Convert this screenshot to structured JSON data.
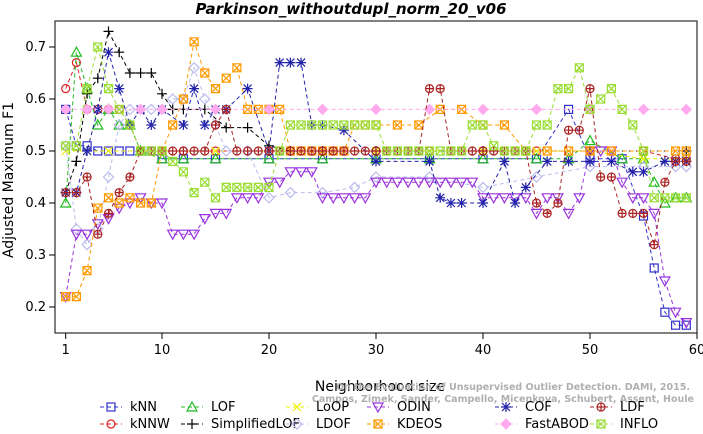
{
  "chart_data": {
    "type": "line",
    "title": "Parkinson_withoutdupl_norm_20_v06",
    "xlabel": "Neighborhood size",
    "ylabel": "Adjusted Maximum F1",
    "xlim": [
      0,
      60
    ],
    "ylim": [
      0.15,
      0.75
    ],
    "x_ticks": [
      1,
      10,
      20,
      30,
      40,
      50,
      60
    ],
    "y_ticks": [
      0.2,
      0.3,
      0.4,
      0.5,
      0.6,
      0.7
    ],
    "grid": false,
    "legend_position": "bottom",
    "watermark": [
      "Campos, Zimek, Sander, Campello, Micenkova, Schubert, Assent, Houle",
      "On the Evaluation of Unsupervised Outlier Detection. DAMI, 2015."
    ],
    "series": [
      {
        "name": "kNN",
        "color": "#3030cc",
        "marker": "square",
        "x": [
          1,
          2,
          3,
          4,
          5,
          6,
          7,
          8,
          9,
          10,
          12,
          15,
          20,
          25,
          30,
          35,
          40,
          45,
          48,
          50,
          53,
          55,
          56,
          57,
          58,
          59
        ],
        "y": [
          0.58,
          0.51,
          0.51,
          0.5,
          0.5,
          0.5,
          0.5,
          0.5,
          0.5,
          0.485,
          0.485,
          0.485,
          0.485,
          0.485,
          0.485,
          0.485,
          0.485,
          0.485,
          0.58,
          0.485,
          0.485,
          0.375,
          0.275,
          0.19,
          0.165,
          0.165
        ]
      },
      {
        "name": "kNNW",
        "color": "#dd2222",
        "marker": "circle",
        "x": [
          1,
          2,
          3,
          4,
          5,
          6,
          7,
          8,
          9,
          10,
          12,
          15,
          20,
          25,
          30,
          35,
          40,
          45,
          50,
          55,
          58,
          59
        ],
        "y": [
          0.62,
          0.67,
          0.58,
          0.58,
          0.58,
          0.58,
          0.55,
          0.5,
          0.5,
          0.5,
          0.5,
          0.5,
          0.5,
          0.5,
          0.5,
          0.5,
          0.5,
          0.5,
          0.5,
          0.5,
          0.485,
          0.485
        ]
      },
      {
        "name": "LOF",
        "color": "#22bb22",
        "marker": "triangle-up",
        "x": [
          1,
          2,
          3,
          4,
          5,
          6,
          7,
          8,
          10,
          12,
          15,
          20,
          25,
          30,
          35,
          40,
          45,
          48,
          50,
          53,
          55,
          56,
          57,
          58,
          59
        ],
        "y": [
          0.4,
          0.69,
          0.62,
          0.55,
          0.58,
          0.55,
          0.55,
          0.5,
          0.485,
          0.485,
          0.485,
          0.485,
          0.485,
          0.485,
          0.485,
          0.485,
          0.485,
          0.485,
          0.52,
          0.485,
          0.485,
          0.44,
          0.4,
          0.41,
          0.41
        ]
      },
      {
        "name": "SimplifiedLOF",
        "color": "#000000",
        "marker": "plus",
        "x": [
          1,
          2,
          3,
          4,
          5,
          6,
          7,
          8,
          9,
          10,
          11,
          12,
          14,
          16,
          18,
          20,
          22,
          25,
          30,
          40,
          50,
          59
        ],
        "y": [
          0.42,
          0.48,
          0.61,
          0.64,
          0.73,
          0.69,
          0.65,
          0.65,
          0.65,
          0.61,
          0.58,
          0.58,
          0.58,
          0.545,
          0.545,
          0.51,
          0.5,
          0.5,
          0.5,
          0.5,
          0.5,
          0.5
        ]
      },
      {
        "name": "LoOP",
        "color": "#eeee00",
        "marker": "x",
        "x": [
          1,
          3,
          5,
          8,
          10,
          15,
          20,
          25,
          30,
          35,
          40,
          45,
          50,
          55,
          59
        ],
        "y": [
          0.5,
          0.5,
          0.5,
          0.5,
          0.5,
          0.5,
          0.5,
          0.5,
          0.5,
          0.5,
          0.5,
          0.5,
          0.5,
          0.485,
          0.485
        ]
      },
      {
        "name": "LDOF",
        "color": "#bbbbee",
        "marker": "diamond",
        "x": [
          1,
          2,
          3,
          4,
          5,
          6,
          7,
          8,
          9,
          10,
          11,
          12,
          13,
          14,
          15,
          16,
          18,
          20,
          22,
          25,
          28,
          30,
          35,
          40,
          45,
          50,
          55,
          58,
          59
        ],
        "y": [
          0.51,
          0.35,
          0.32,
          0.35,
          0.45,
          0.55,
          0.58,
          0.58,
          0.58,
          0.58,
          0.6,
          0.6,
          0.66,
          0.6,
          0.55,
          0.5,
          0.5,
          0.41,
          0.42,
          0.42,
          0.43,
          0.45,
          0.45,
          0.43,
          0.45,
          0.47,
          0.47,
          0.47,
          0.47
        ]
      },
      {
        "name": "ODIN",
        "color": "#9933dd",
        "marker": "triangle-down",
        "x": [
          1,
          2,
          3,
          4,
          5,
          6,
          7,
          8,
          9,
          10,
          11,
          12,
          13,
          14,
          15,
          16,
          17,
          18,
          19,
          20,
          21,
          22,
          23,
          24,
          25,
          26,
          27,
          28,
          29,
          30,
          31,
          32,
          33,
          34,
          35,
          36,
          37,
          38,
          39,
          40,
          41,
          42,
          43,
          44,
          45,
          46,
          47,
          48,
          49,
          50,
          51,
          52,
          53,
          54,
          55,
          56,
          57,
          58,
          59
        ],
        "y": [
          0.22,
          0.34,
          0.34,
          0.36,
          0.37,
          0.39,
          0.4,
          0.41,
          0.4,
          0.4,
          0.34,
          0.34,
          0.34,
          0.37,
          0.38,
          0.38,
          0.41,
          0.41,
          0.41,
          0.44,
          0.44,
          0.46,
          0.46,
          0.46,
          0.41,
          0.41,
          0.41,
          0.41,
          0.41,
          0.44,
          0.44,
          0.44,
          0.44,
          0.44,
          0.44,
          0.44,
          0.44,
          0.44,
          0.44,
          0.41,
          0.41,
          0.41,
          0.41,
          0.41,
          0.38,
          0.41,
          0.41,
          0.38,
          0.41,
          0.5,
          0.5,
          0.5,
          0.44,
          0.41,
          0.41,
          0.38,
          0.25,
          0.19,
          0.17
        ]
      },
      {
        "name": "KDEOS",
        "color": "#ff9900",
        "marker": "square-x",
        "x": [
          1,
          2,
          3,
          4,
          5,
          6,
          7,
          8,
          9,
          10,
          11,
          12,
          13,
          14,
          15,
          16,
          17,
          18,
          19,
          20,
          21,
          22,
          23,
          24,
          25,
          26,
          27,
          28,
          29,
          30,
          32,
          34,
          36,
          38,
          40,
          42,
          44,
          46,
          48,
          50,
          52,
          55,
          58,
          59
        ],
        "y": [
          0.22,
          0.22,
          0.27,
          0.39,
          0.41,
          0.4,
          0.41,
          0.4,
          0.4,
          0.5,
          0.55,
          0.6,
          0.71,
          0.65,
          0.62,
          0.64,
          0.66,
          0.58,
          0.58,
          0.58,
          0.58,
          0.5,
          0.5,
          0.5,
          0.5,
          0.5,
          0.5,
          0.55,
          0.55,
          0.55,
          0.55,
          0.55,
          0.58,
          0.58,
          0.55,
          0.55,
          0.5,
          0.5,
          0.5,
          0.5,
          0.5,
          0.5,
          0.5,
          0.5
        ]
      },
      {
        "name": "COF",
        "color": "#2222aa",
        "marker": "asterisk",
        "x": [
          1,
          2,
          3,
          4,
          5,
          6,
          7,
          8,
          9,
          10,
          12,
          13,
          14,
          15,
          16,
          18,
          20,
          21,
          22,
          23,
          24,
          25,
          27,
          30,
          35,
          36,
          37,
          38,
          40,
          42,
          43,
          44,
          46,
          48,
          50,
          52,
          54,
          55,
          57,
          58,
          59
        ],
        "y": [
          0.42,
          0.42,
          0.5,
          0.58,
          0.69,
          0.62,
          0.55,
          0.58,
          0.55,
          0.58,
          0.55,
          0.62,
          0.55,
          0.58,
          0.58,
          0.62,
          0.5,
          0.67,
          0.67,
          0.67,
          0.55,
          0.55,
          0.54,
          0.48,
          0.48,
          0.41,
          0.4,
          0.4,
          0.4,
          0.48,
          0.4,
          0.43,
          0.48,
          0.48,
          0.48,
          0.48,
          0.46,
          0.46,
          0.48,
          0.48,
          0.48
        ]
      },
      {
        "name": "FastABOD",
        "color": "#ffaaee",
        "marker": "diamond-filled",
        "x": [
          1,
          3,
          5,
          8,
          10,
          15,
          20,
          25,
          30,
          35,
          40,
          45,
          50,
          55,
          59
        ],
        "y": [
          0.58,
          0.58,
          0.58,
          0.58,
          0.58,
          0.58,
          0.58,
          0.58,
          0.58,
          0.58,
          0.58,
          0.58,
          0.58,
          0.58,
          0.58
        ]
      },
      {
        "name": "LDF",
        "color": "#aa2222",
        "marker": "circle-plus",
        "x": [
          1,
          2,
          3,
          4,
          5,
          6,
          7,
          8,
          9,
          10,
          11,
          12,
          13,
          14,
          15,
          16,
          17,
          18,
          19,
          20,
          21,
          22,
          23,
          24,
          25,
          26,
          27,
          28,
          29,
          30,
          31,
          32,
          33,
          34,
          35,
          36,
          37,
          38,
          39,
          40,
          41,
          42,
          43,
          44,
          45,
          46,
          47,
          48,
          49,
          50,
          51,
          52,
          53,
          54,
          55,
          56,
          57,
          58,
          59
        ],
        "y": [
          0.42,
          0.42,
          0.45,
          0.34,
          0.38,
          0.42,
          0.45,
          0.5,
          0.5,
          0.5,
          0.5,
          0.5,
          0.5,
          0.5,
          0.55,
          0.58,
          0.5,
          0.5,
          0.5,
          0.5,
          0.5,
          0.5,
          0.5,
          0.5,
          0.5,
          0.5,
          0.5,
          0.5,
          0.5,
          0.5,
          0.5,
          0.5,
          0.5,
          0.5,
          0.62,
          0.62,
          0.5,
          0.5,
          0.5,
          0.5,
          0.5,
          0.5,
          0.5,
          0.5,
          0.4,
          0.38,
          0.4,
          0.54,
          0.54,
          0.62,
          0.45,
          0.45,
          0.38,
          0.38,
          0.38,
          0.32,
          0.44,
          0.48,
          0.48
        ]
      },
      {
        "name": "INFLO",
        "color": "#99dd33",
        "marker": "square-x",
        "x": [
          1,
          2,
          3,
          4,
          5,
          6,
          7,
          8,
          9,
          10,
          11,
          12,
          13,
          14,
          15,
          16,
          17,
          18,
          19,
          20,
          21,
          22,
          23,
          24,
          25,
          26,
          27,
          28,
          29,
          30,
          31,
          32,
          33,
          34,
          35,
          36,
          37,
          38,
          39,
          40,
          41,
          42,
          43,
          44,
          45,
          46,
          47,
          48,
          49,
          50,
          51,
          52,
          53,
          54,
          55,
          56,
          57,
          58,
          59
        ],
        "y": [
          0.51,
          0.51,
          0.62,
          0.7,
          0.62,
          0.58,
          0.55,
          0.5,
          0.5,
          0.5,
          0.48,
          0.46,
          0.42,
          0.44,
          0.41,
          0.43,
          0.43,
          0.43,
          0.43,
          0.43,
          0.5,
          0.55,
          0.55,
          0.55,
          0.55,
          0.55,
          0.55,
          0.55,
          0.55,
          0.55,
          0.5,
          0.5,
          0.5,
          0.5,
          0.5,
          0.5,
          0.5,
          0.5,
          0.55,
          0.55,
          0.51,
          0.5,
          0.5,
          0.5,
          0.55,
          0.55,
          0.62,
          0.62,
          0.66,
          0.58,
          0.6,
          0.62,
          0.58,
          0.55,
          0.5,
          0.41,
          0.41,
          0.41,
          0.41
        ]
      }
    ]
  }
}
